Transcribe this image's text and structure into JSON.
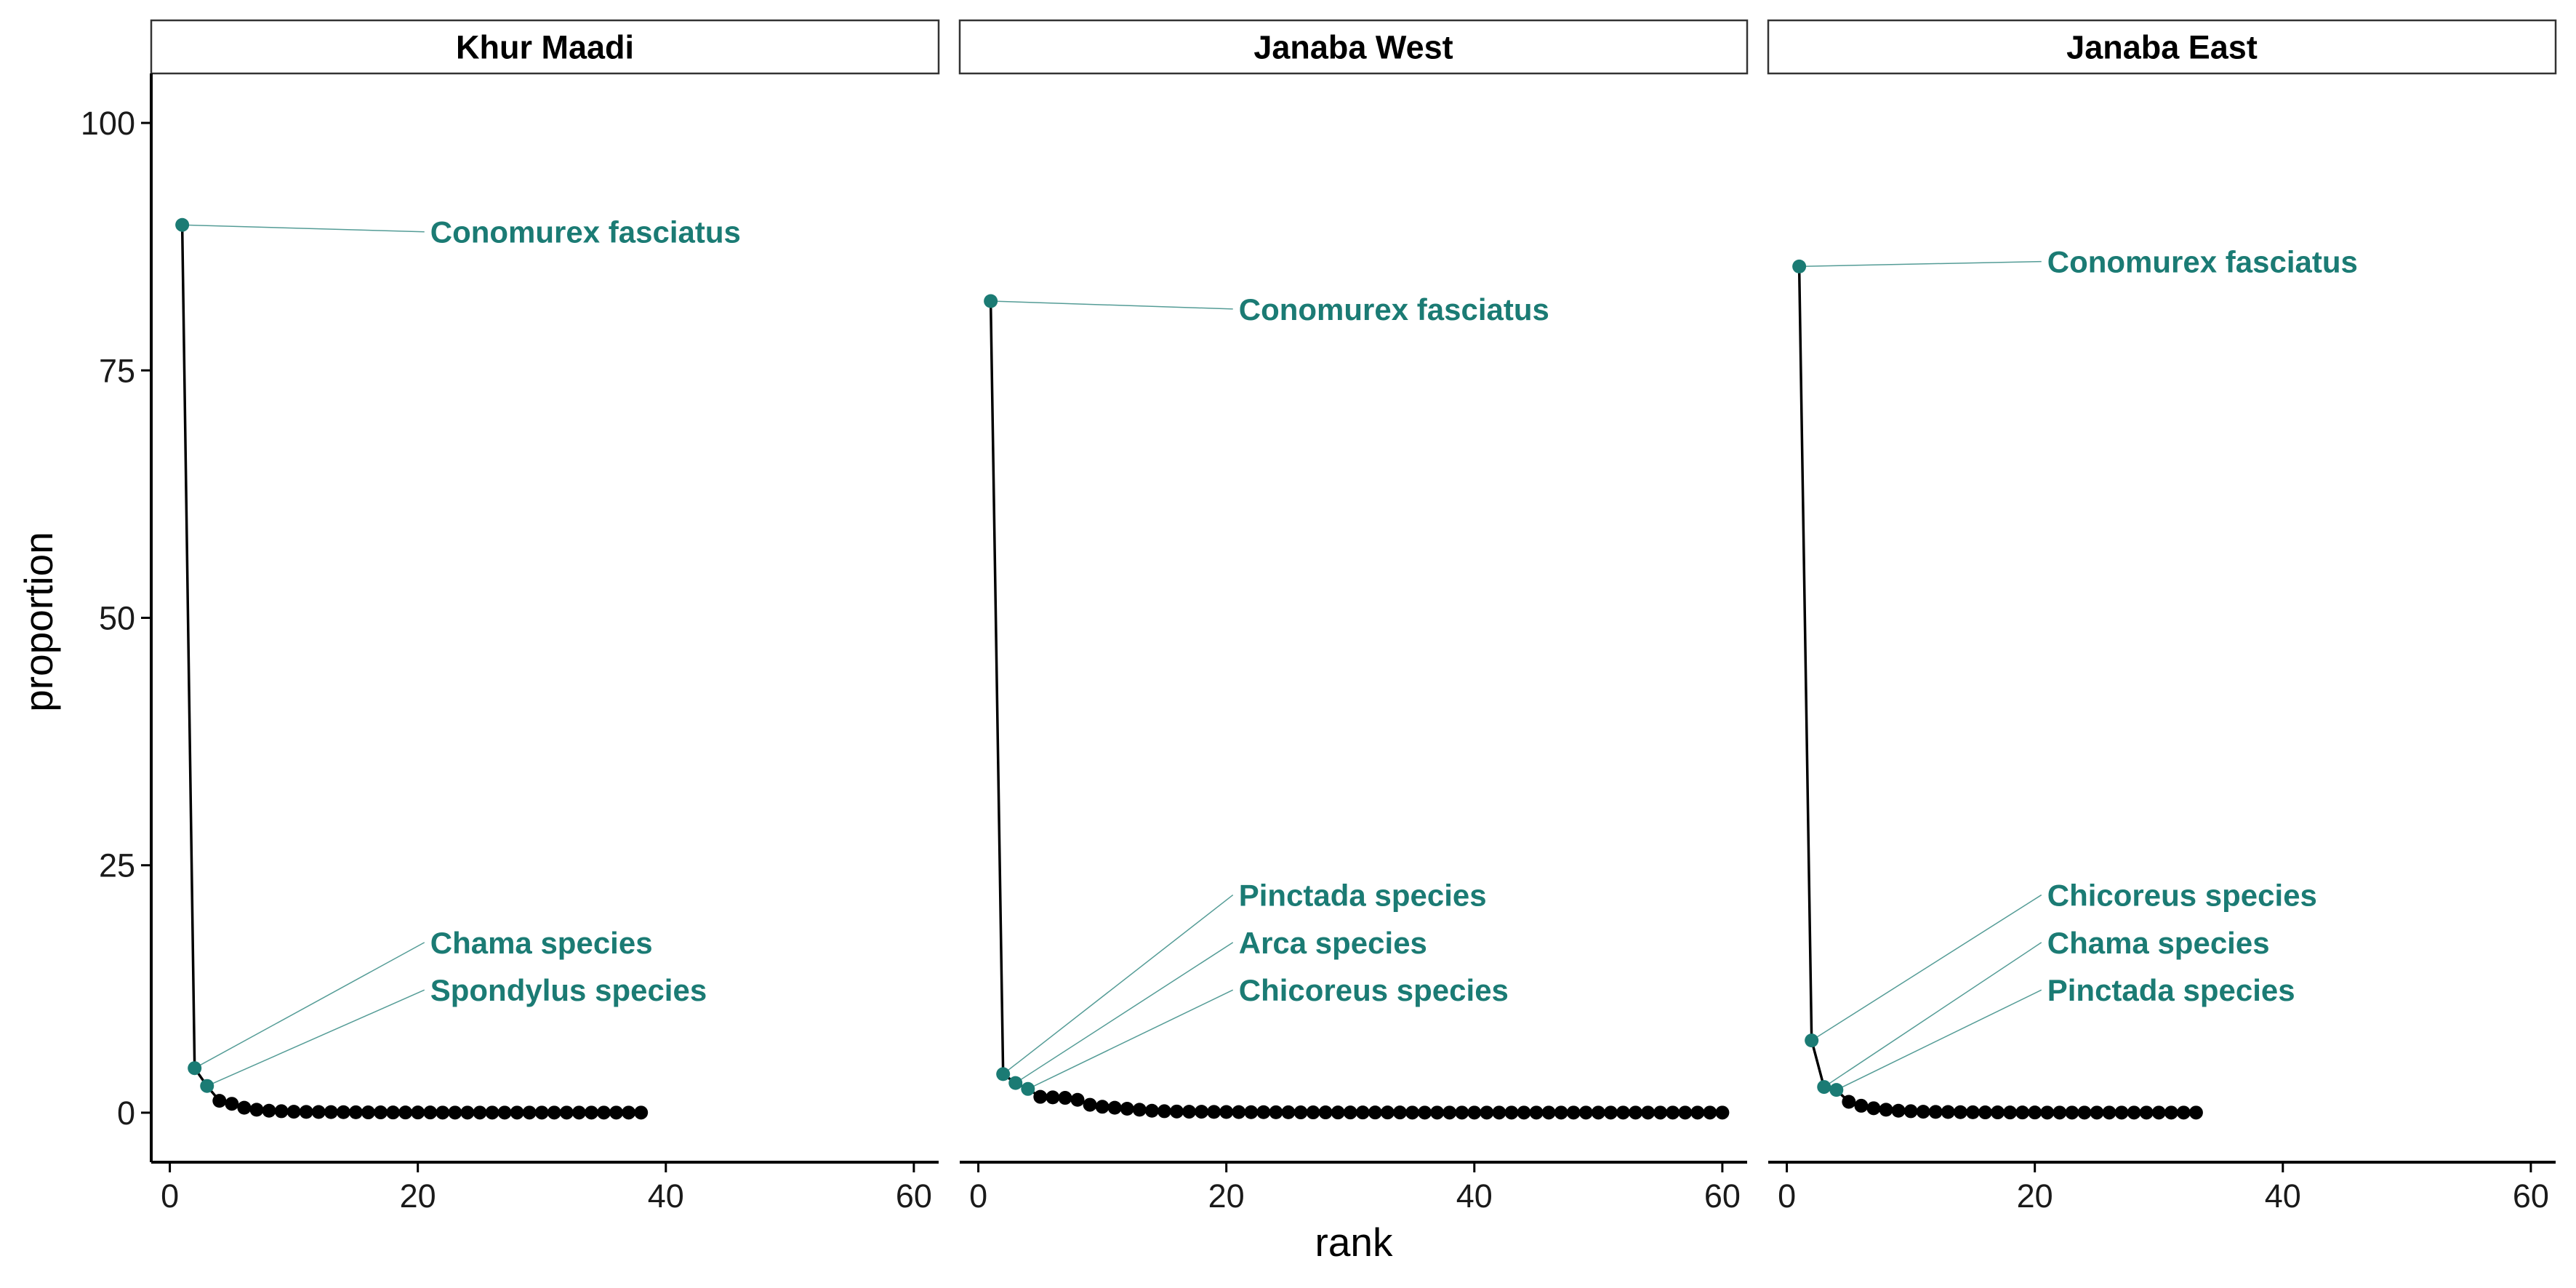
{
  "colors": {
    "highlight": "#1B7B74",
    "line": "#000000",
    "axis": "#000000",
    "strip_fill": "#FFFFFF"
  },
  "chart_data": {
    "type": "line",
    "xlabel": "rank",
    "ylabel": "proportion",
    "xlim": [
      -1.5,
      62
    ],
    "ylim": [
      -5,
      105
    ],
    "x_ticks": [
      0,
      20,
      40,
      60
    ],
    "y_ticks": [
      0,
      25,
      50,
      75,
      100
    ],
    "x_tick_labels": [
      "0",
      "20",
      "40",
      "60"
    ],
    "y_tick_labels": [
      "0",
      "25",
      "50",
      "75",
      "100"
    ],
    "grid": false,
    "panels": [
      {
        "title": "Khur Maadi",
        "points": [
          [
            1,
            89.7
          ],
          [
            2,
            4.5
          ],
          [
            3,
            2.7
          ],
          [
            4,
            1.2
          ],
          [
            5,
            0.9
          ],
          [
            6,
            0.5
          ],
          [
            7,
            0.3
          ],
          [
            8,
            0.2
          ],
          [
            9,
            0.15
          ],
          [
            10,
            0.1
          ],
          [
            11,
            0.08
          ],
          [
            12,
            0.07
          ],
          [
            13,
            0.06
          ],
          [
            14,
            0.05
          ],
          [
            15,
            0.04
          ],
          [
            16,
            0.03
          ],
          [
            17,
            0.03
          ],
          [
            18,
            0.02
          ],
          [
            19,
            0.02
          ],
          [
            20,
            0.02
          ],
          [
            21,
            0.02
          ],
          [
            22,
            0.01
          ],
          [
            23,
            0.01
          ],
          [
            24,
            0.01
          ],
          [
            25,
            0.01
          ],
          [
            26,
            0.01
          ],
          [
            27,
            0.01
          ],
          [
            28,
            0.01
          ],
          [
            29,
            0.01
          ],
          [
            30,
            0.01
          ],
          [
            31,
            0.01
          ],
          [
            32,
            0.01
          ],
          [
            33,
            0.01
          ],
          [
            34,
            0.01
          ],
          [
            35,
            0.01
          ],
          [
            36,
            0.01
          ],
          [
            37,
            0.01
          ],
          [
            38,
            0.01
          ]
        ],
        "labels": [
          {
            "text": "Conomurex fasciatus",
            "rank": 1,
            "value": 89.7,
            "label_y": 89
          },
          {
            "text": "Chama species",
            "rank": 2,
            "value": 4.5,
            "label_y": 17.2
          },
          {
            "text": "Spondylus species",
            "rank": 3,
            "value": 2.7,
            "label_y": 12.4
          }
        ]
      },
      {
        "title": "Janaba West",
        "points": [
          [
            1,
            82
          ],
          [
            2,
            3.9
          ],
          [
            3,
            3.0
          ],
          [
            4,
            2.4
          ],
          [
            5,
            1.6
          ],
          [
            6,
            1.55
          ],
          [
            7,
            1.5
          ],
          [
            8,
            1.3
          ],
          [
            9,
            0.8
          ],
          [
            10,
            0.6
          ],
          [
            11,
            0.5
          ],
          [
            12,
            0.4
          ],
          [
            13,
            0.3
          ],
          [
            14,
            0.2
          ],
          [
            15,
            0.15
          ],
          [
            16,
            0.12
          ],
          [
            17,
            0.1
          ],
          [
            18,
            0.1
          ],
          [
            19,
            0.08
          ],
          [
            20,
            0.07
          ],
          [
            21,
            0.06
          ],
          [
            22,
            0.05
          ],
          [
            23,
            0.05
          ],
          [
            24,
            0.04
          ],
          [
            25,
            0.04
          ],
          [
            26,
            0.03
          ],
          [
            27,
            0.03
          ],
          [
            28,
            0.03
          ],
          [
            29,
            0.02
          ],
          [
            30,
            0.02
          ],
          [
            31,
            0.02
          ],
          [
            32,
            0.02
          ],
          [
            33,
            0.02
          ],
          [
            34,
            0.02
          ],
          [
            35,
            0.01
          ],
          [
            36,
            0.01
          ],
          [
            37,
            0.01
          ],
          [
            38,
            0.01
          ],
          [
            39,
            0.01
          ],
          [
            40,
            0.01
          ],
          [
            41,
            0.01
          ],
          [
            42,
            0.01
          ],
          [
            43,
            0.01
          ],
          [
            44,
            0.01
          ],
          [
            45,
            0.01
          ],
          [
            46,
            0.01
          ],
          [
            47,
            0.01
          ],
          [
            48,
            0.01
          ],
          [
            49,
            0.01
          ],
          [
            50,
            0.01
          ],
          [
            51,
            0.01
          ],
          [
            52,
            0.01
          ],
          [
            53,
            0.01
          ],
          [
            54,
            0.01
          ],
          [
            55,
            0.01
          ],
          [
            56,
            0.01
          ],
          [
            57,
            0.01
          ],
          [
            58,
            0.01
          ],
          [
            59,
            0.01
          ],
          [
            60,
            0.01
          ]
        ],
        "labels": [
          {
            "text": "Conomurex fasciatus",
            "rank": 1,
            "value": 82,
            "label_y": 81.2
          },
          {
            "text": "Pinctada species",
            "rank": 2,
            "value": 3.9,
            "label_y": 22
          },
          {
            "text": "Arca species",
            "rank": 3,
            "value": 3.0,
            "label_y": 17.2
          },
          {
            "text": "Chicoreus species",
            "rank": 4,
            "value": 2.4,
            "label_y": 12.4
          }
        ]
      },
      {
        "title": "Janaba East",
        "points": [
          [
            1,
            85.5
          ],
          [
            2,
            7.3
          ],
          [
            3,
            2.6
          ],
          [
            4,
            2.3
          ],
          [
            5,
            1.1
          ],
          [
            6,
            0.7
          ],
          [
            7,
            0.45
          ],
          [
            8,
            0.3
          ],
          [
            9,
            0.2
          ],
          [
            10,
            0.15
          ],
          [
            11,
            0.1
          ],
          [
            12,
            0.08
          ],
          [
            13,
            0.07
          ],
          [
            14,
            0.05
          ],
          [
            15,
            0.04
          ],
          [
            16,
            0.03
          ],
          [
            17,
            0.03
          ],
          [
            18,
            0.02
          ],
          [
            19,
            0.02
          ],
          [
            20,
            0.02
          ],
          [
            21,
            0.01
          ],
          [
            22,
            0.01
          ],
          [
            23,
            0.01
          ],
          [
            24,
            0.01
          ],
          [
            25,
            0.01
          ],
          [
            26,
            0.01
          ],
          [
            27,
            0.01
          ],
          [
            28,
            0.01
          ],
          [
            29,
            0.01
          ],
          [
            30,
            0.01
          ],
          [
            31,
            0.01
          ],
          [
            32,
            0.01
          ],
          [
            33,
            0.01
          ]
        ],
        "labels": [
          {
            "text": "Conomurex fasciatus",
            "rank": 1,
            "value": 85.5,
            "label_y": 86
          },
          {
            "text": "Chicoreus species",
            "rank": 2,
            "value": 7.3,
            "label_y": 22
          },
          {
            "text": "Chama species",
            "rank": 3,
            "value": 2.6,
            "label_y": 17.2
          },
          {
            "text": "Pinctada species",
            "rank": 4,
            "value": 2.3,
            "label_y": 12.4
          }
        ]
      }
    ]
  }
}
